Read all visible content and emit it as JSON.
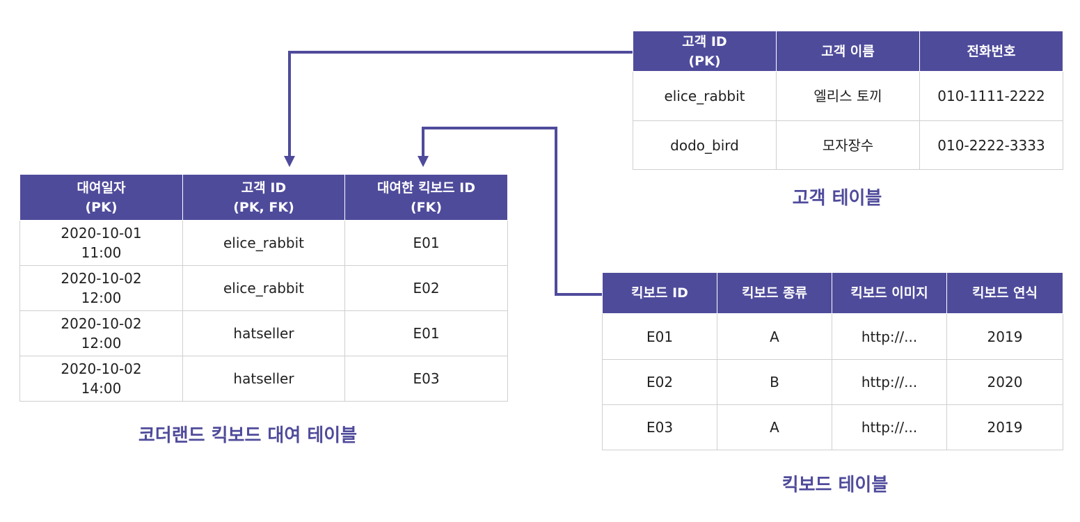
{
  "colors": {
    "header_bg": "#4f4b9b",
    "caption": "#4f4b9b",
    "border": "#cfcfcf",
    "arrow": "#4f4b9b"
  },
  "customer_table": {
    "caption": "고객 테이블",
    "headers": [
      [
        "고객 ID",
        "(PK)"
      ],
      [
        "고객 이름"
      ],
      [
        "전화번호"
      ]
    ],
    "rows": [
      [
        "elice_rabbit",
        "엘리스 토끼",
        "010-1111-2222"
      ],
      [
        "dodo_bird",
        "모자장수",
        "010-2222-3333"
      ]
    ]
  },
  "rental_table": {
    "caption": "코더랜드 킥보드 대여 테이블",
    "headers": [
      [
        "대여일자",
        "(PK)"
      ],
      [
        "고객 ID",
        "(PK, FK)"
      ],
      [
        "대여한 킥보드 ID",
        "(FK)"
      ]
    ],
    "rows": [
      [
        [
          "2020-10-01",
          "11:00"
        ],
        "elice_rabbit",
        "E01"
      ],
      [
        [
          "2020-10-02",
          "12:00"
        ],
        "elice_rabbit",
        "E02"
      ],
      [
        [
          "2020-10-02",
          "12:00"
        ],
        "hatseller",
        "E01"
      ],
      [
        [
          "2020-10-02",
          "14:00"
        ],
        "hatseller",
        "E03"
      ]
    ]
  },
  "kickboard_table": {
    "caption": "킥보드 테이블",
    "headers": [
      [
        "킥보드 ID"
      ],
      [
        "킥보드 종류"
      ],
      [
        "킥보드 이미지"
      ],
      [
        "킥보드 연식"
      ]
    ],
    "rows": [
      [
        "E01",
        "A",
        "http://...",
        "2019"
      ],
      [
        "E02",
        "B",
        "http://...",
        "2020"
      ],
      [
        "E03",
        "A",
        "http://...",
        "2019"
      ]
    ]
  }
}
